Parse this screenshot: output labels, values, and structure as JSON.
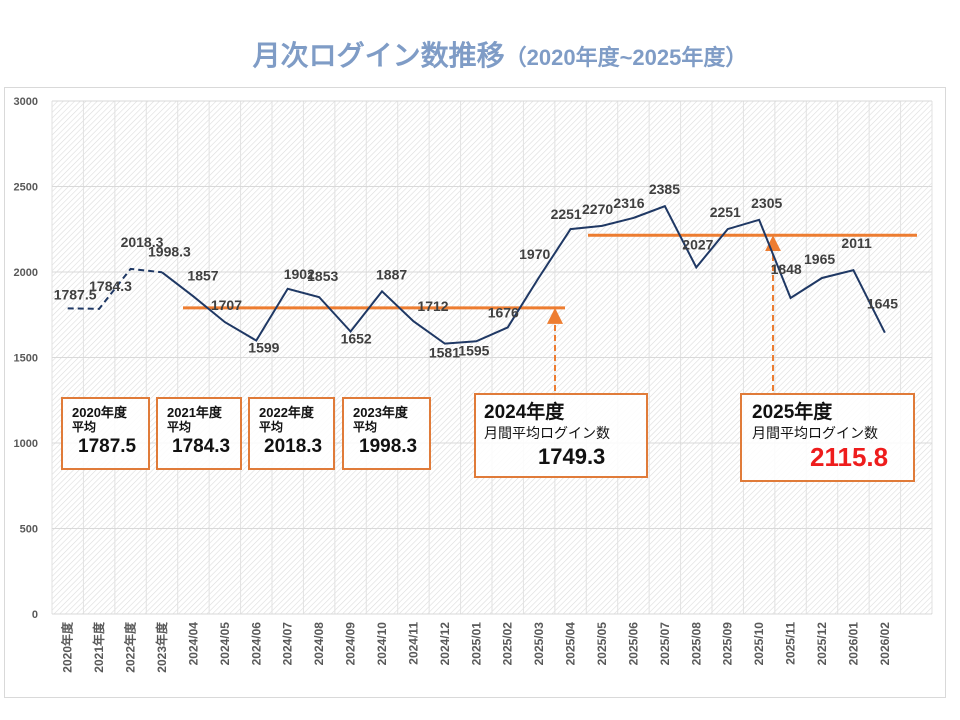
{
  "title": {
    "main": "月次ログイン数推移",
    "sub": "（2020年度~2025年度）"
  },
  "colors": {
    "line": "#1f3864",
    "average": "#ed7d31",
    "box_border": "#e07b39",
    "title": "#7f9cc6",
    "highlight": "#ee1c1c"
  },
  "chart_data": {
    "type": "line",
    "title": "月次ログイン数推移（2020年度~2025年度）",
    "xlabel": "",
    "ylabel": "",
    "ylim": [
      0,
      3000
    ],
    "yticks": [
      0,
      500,
      1000,
      1500,
      2000,
      2500,
      3000
    ],
    "grid": true,
    "categories": [
      "2020年度",
      "2021年度",
      "2022年度",
      "2023年度",
      "2024/04",
      "2024/05",
      "2024/06",
      "2024/07",
      "2024/08",
      "2024/09",
      "2024/10",
      "2024/11",
      "2024/12",
      "2025/01",
      "2025/02",
      "2025/03",
      "2025/04",
      "2025/05",
      "2025/06",
      "2025/07",
      "2025/08",
      "2025/09",
      "2025/10",
      "2025/11",
      "2025/12",
      "2026/01",
      "2026/02"
    ],
    "series": [
      {
        "name": "月次ログイン数",
        "values": [
          1787.5,
          1784.3,
          2018.3,
          1998.3,
          1857,
          1707,
          1599,
          1902,
          1853,
          1652,
          1887,
          1712,
          1581,
          1595,
          1676,
          1970,
          2251,
          2270,
          2316,
          2385,
          2027,
          2251,
          2305,
          1848,
          1965,
          2011,
          1645
        ],
        "labels": [
          "1787.5",
          "1784.3",
          "2018.3",
          "1998.3",
          "1857",
          "1707",
          "1599",
          "1902",
          "1853",
          "1652",
          "1887",
          "1712",
          "1581",
          "1595",
          "1676",
          "1970",
          "2251",
          "2270",
          "2316",
          "2385",
          "2027",
          "2251",
          "2305",
          "1848",
          "1965",
          "2011",
          "1645"
        ],
        "dashed_until_index": 4
      }
    ],
    "averages": [
      {
        "name": "2024年度平均",
        "value": 1749.3,
        "from": "2024/04",
        "to": "2025/03"
      },
      {
        "name": "2025年度平均",
        "value": 2115.8,
        "from": "2025/04",
        "to": "2026/02"
      }
    ]
  },
  "yearly_boxes": [
    {
      "year": "2020年度",
      "caption": "平均",
      "value": "1787.5"
    },
    {
      "year": "2021年度",
      "caption": "平均",
      "value": "1784.3"
    },
    {
      "year": "2022年度",
      "caption": "平均",
      "value": "2018.3"
    },
    {
      "year": "2023年度",
      "caption": "平均",
      "value": "1998.3"
    }
  ],
  "average_boxes": [
    {
      "year": "2024年度",
      "caption": "月間平均ログイン数",
      "value": "1749.3"
    },
    {
      "year": "2025年度",
      "caption": "月間平均ログイン数",
      "value": "2115.8"
    }
  ]
}
